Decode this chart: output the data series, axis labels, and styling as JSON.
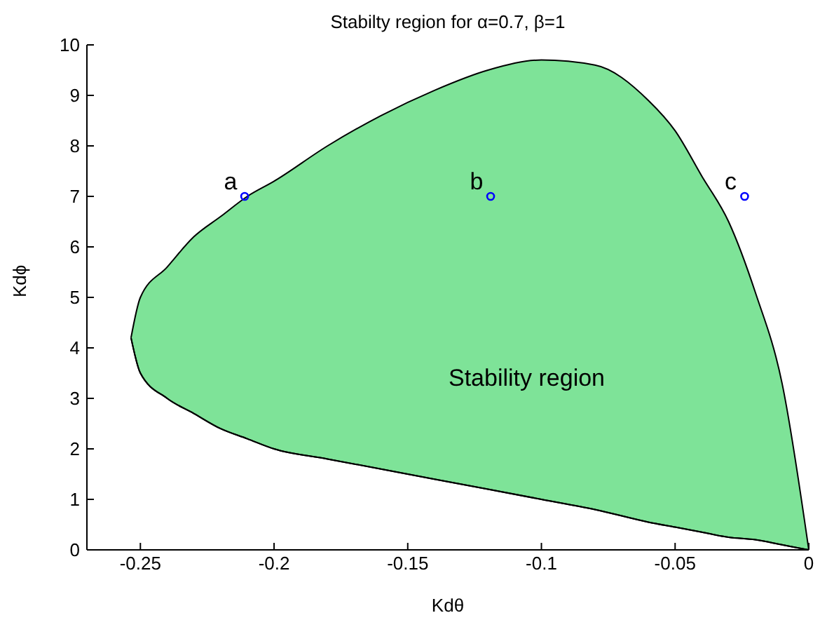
{
  "chart_data": {
    "type": "area",
    "title": "Stabilty region for α=0.7, β=1",
    "xlabel": "Kdθ",
    "ylabel": "Kdϕ",
    "xlim": [
      -0.27,
      0
    ],
    "xticks": [
      -0.25,
      -0.2,
      -0.15,
      -0.1,
      -0.05,
      0
    ],
    "ylim": [
      0,
      10
    ],
    "yticks": [
      0,
      1,
      2,
      3,
      4,
      5,
      6,
      7,
      8,
      9,
      10
    ],
    "grid": false,
    "legend": false,
    "series": [
      {
        "color": "#7ee398",
        "x": [
          -0.2535,
          -0.25,
          -0.24,
          -0.23,
          -0.22,
          -0.21,
          -0.2,
          -0.18,
          -0.16,
          -0.14,
          -0.12,
          -0.1,
          -0.08,
          -0.06,
          -0.05,
          -0.04,
          -0.03,
          -0.02,
          -0.01,
          0
        ],
        "values": [
          4.2,
          5.0,
          5.6,
          6.2,
          6.6,
          7.0,
          7.3,
          8.0,
          8.6,
          9.1,
          9.5,
          9.7,
          9.6,
          8.9,
          8.3,
          7.4,
          6.5,
          5.1,
          3.3,
          0
        ]
      },
      {
        "type": "line",
        "color": "#000000",
        "x": [
          -0.2535,
          -0.25,
          -0.24,
          -0.23,
          -0.22,
          -0.21,
          -0.2,
          -0.18,
          -0.16,
          -0.14,
          -0.12,
          -0.1,
          -0.08,
          -0.06,
          -0.05,
          -0.04,
          -0.03,
          -0.02,
          -0.01,
          0
        ],
        "values": [
          4.2,
          3.5,
          3.0,
          2.7,
          2.4,
          2.2,
          2.0,
          1.8,
          1.6,
          1.4,
          1.2,
          1.0,
          0.8,
          0.55,
          0.45,
          0.35,
          0.25,
          0.2,
          0.1,
          0
        ]
      },
      {
        "type": "scatter",
        "color": "#0000ff",
        "marker": "circle",
        "x": [
          -0.211,
          -0.119,
          -0.024
        ],
        "values": [
          7,
          7,
          7
        ]
      }
    ],
    "annotations": [
      {
        "text": "a",
        "x": -0.211,
        "y": 7
      },
      {
        "text": "b",
        "x": -0.119,
        "y": 7
      },
      {
        "text": "c",
        "x": -0.024,
        "y": 7
      },
      "Stability region"
    ]
  }
}
